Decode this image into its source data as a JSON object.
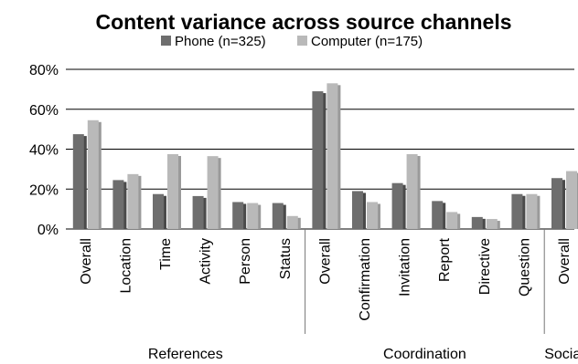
{
  "chart_data": {
    "type": "bar",
    "title": "Content variance across source channels",
    "ylim": [
      0,
      80
    ],
    "yticks": [
      0,
      20,
      40,
      60,
      80
    ],
    "ytick_labels": [
      "0%",
      "20%",
      "40%",
      "60%",
      "80%"
    ],
    "grid": "horizontal",
    "legend_position": "top-center",
    "categories": [
      "Overall",
      "Location",
      "Time",
      "Activity",
      "Person",
      "Status",
      "Overall",
      "Confirmation",
      "Invitation",
      "Report",
      "Directive",
      "Question",
      "Overall"
    ],
    "groups": [
      {
        "label": "References",
        "start": 0,
        "count": 6
      },
      {
        "label": "Coordination",
        "start": 6,
        "count": 6
      },
      {
        "label": "Social",
        "start": 12,
        "count": 1
      }
    ],
    "series": [
      {
        "name": "Phone (n=325)",
        "color": "#6e6e6e",
        "values": [
          47.5,
          24.5,
          17.5,
          16.5,
          13.5,
          13,
          69,
          19,
          23,
          14,
          6,
          17.5,
          25.5
        ]
      },
      {
        "name": "Computer (n=175)",
        "color": "#b9b9b9",
        "values": [
          54.5,
          27.5,
          37.5,
          36.5,
          13,
          6.5,
          73,
          13.5,
          37.5,
          8.5,
          5,
          17.5,
          29
        ]
      }
    ]
  }
}
